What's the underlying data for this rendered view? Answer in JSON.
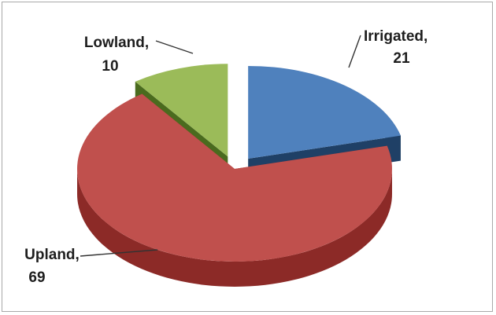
{
  "chart_data": {
    "type": "pie",
    "title": "",
    "legend": "none",
    "exploded": true,
    "style": "3d",
    "slices": [
      {
        "name": "Irrigated",
        "value": 21,
        "color": "#4f81bd",
        "side_color": "#1f4066"
      },
      {
        "name": "Upland",
        "value": 69,
        "color": "#c0504d",
        "side_color": "#8c2a27"
      },
      {
        "name": "Lowland",
        "value": 10,
        "color": "#9bbb59",
        "side_color": "#4a6b1e"
      }
    ],
    "labels": {
      "irrigated": {
        "name": "Irrigated,",
        "value": "21"
      },
      "upland": {
        "name": "Upland,",
        "value": "69"
      },
      "lowland": {
        "name": "Lowland,",
        "value": "10"
      }
    }
  }
}
